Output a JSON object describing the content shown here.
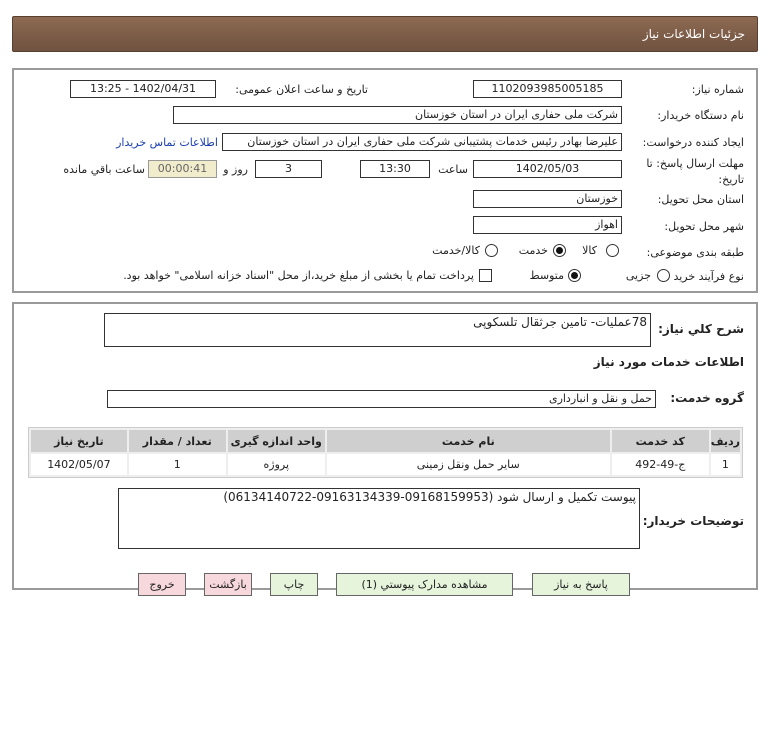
{
  "header": {
    "title": "جزئیات اطلاعات نیاز"
  },
  "form": {
    "need_number_label": "شماره نیاز:",
    "need_number": "1102093985005185",
    "announce_label": "تاریخ و ساعت اعلان عمومی:",
    "announce_value": "1402/04/31 - 13:25",
    "buyer_label": "نام دستگاه خریدار:",
    "buyer": "شرکت ملی حفاری ایران در استان خوزستان",
    "creator_label": "ایجاد کننده درخواست:",
    "creator": "علیرضا بهادر رئیس خدمات پشتیبانی شرکت ملی حفاری ایران در استان خوزستان",
    "contact_link": "اطلاعات تماس خریدار",
    "deadline_label_1": "مهلت ارسال پاسخ: تا",
    "deadline_label_2": "تاریخ:",
    "deadline_date": "1402/05/03",
    "time_label": "ساعت",
    "deadline_time": "13:30",
    "days": "3",
    "days_label": "روز و",
    "remaining": "00:00:41",
    "remaining_label": "ساعت باقي مانده",
    "province_label": "استان محل تحویل:",
    "province": "خوزستان",
    "city_label": "شهر محل تحویل:",
    "city": "اهواز",
    "category_label": "طبقه بندی موضوعی:",
    "category_options": [
      "کالا",
      "خدمت",
      "کالا/خدمت"
    ],
    "category_selected": "خدمت",
    "process_label": "نوع فرآیند خرید :",
    "process_options": [
      "جزیی",
      "متوسط"
    ],
    "process_selected": "متوسط",
    "payment_note": "پرداخت تمام یا بخشی از مبلغ خرید،از محل \"اسناد خزانه اسلامی\" خواهد بود."
  },
  "details": {
    "summary_label": "شرح کلي نياز:",
    "summary": "78عملیات- تامین جرثقال تلسکوپی",
    "services_title": "اطلاعات خدمات مورد نیاز",
    "group_label": "گروه خدمت:",
    "group": "حمل و نقل و انبارداری",
    "table": {
      "headers": [
        "ردیف",
        "کد خدمت",
        "نام خدمت",
        "واحد اندازه گیری",
        "تعداد / مقدار",
        "تاریخ نیاز"
      ],
      "rows": [
        [
          "1",
          "ج-49-492",
          "سایر حمل ونقل زمینی",
          "پروژه",
          "1",
          "1402/05/07"
        ]
      ]
    },
    "buyer_notes_label": "توضیحات خریدار:",
    "buyer_notes": "پیوست تکمیل و ارسال شود (09168159953-09163134339-06134140722)"
  },
  "buttons": {
    "reply": "پاسخ به نیاز",
    "attachments": "مشاهده مدارک پیوستي (1)",
    "print": "چاپ",
    "back": "بازگشت",
    "exit": "خروج"
  }
}
